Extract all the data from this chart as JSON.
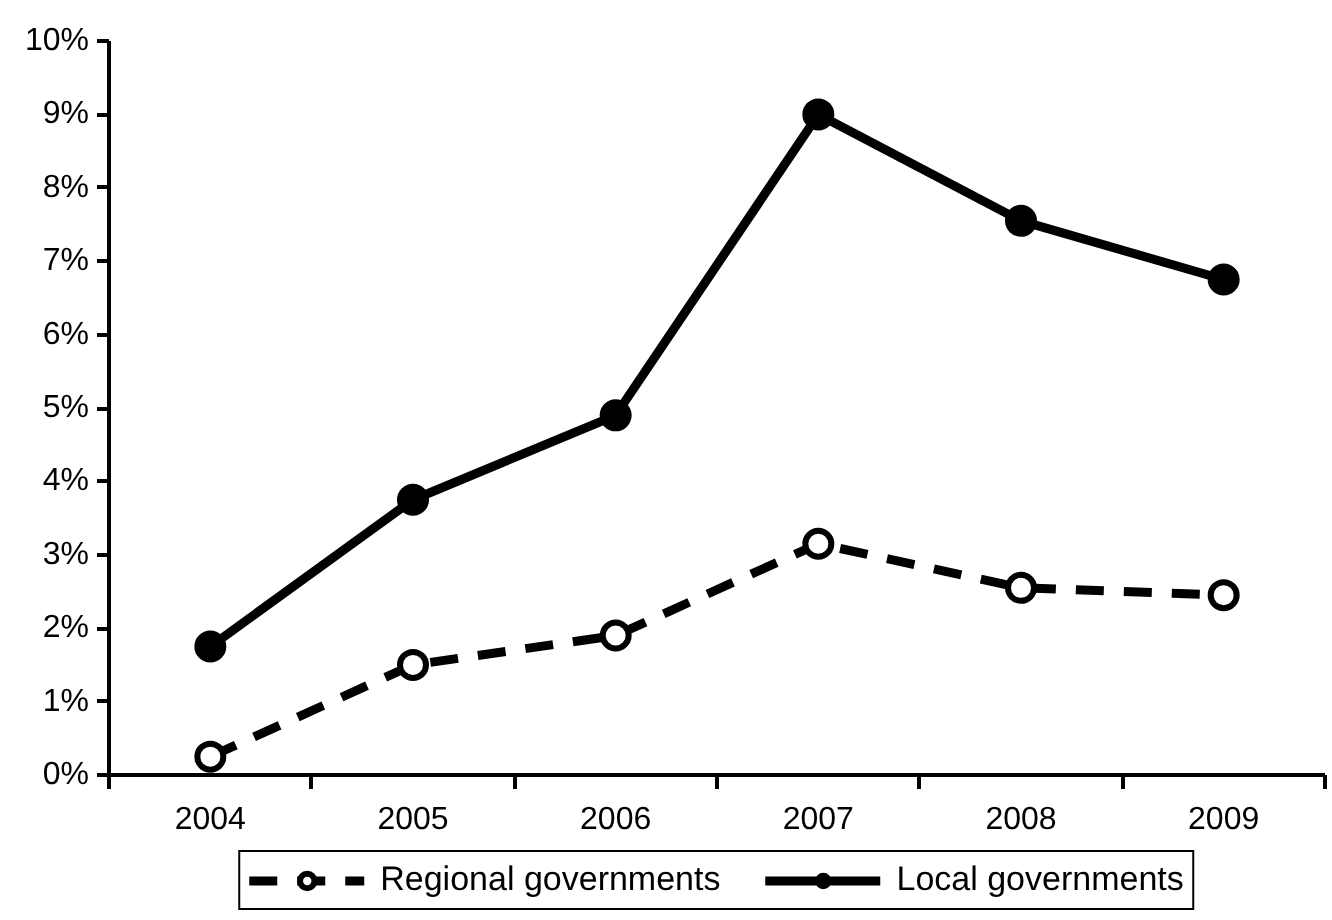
{
  "chart_data": {
    "type": "line",
    "categories": [
      "2004",
      "2005",
      "2006",
      "2007",
      "2008",
      "2009"
    ],
    "series": [
      {
        "name": "Regional governments",
        "color": "#000000",
        "values": [
          0.25,
          1.5,
          1.9,
          3.15,
          2.55,
          2.45
        ],
        "line_style": "dashed",
        "marker": "circle"
      },
      {
        "name": "Local governments",
        "color": "#000000",
        "values": [
          1.75,
          3.75,
          4.9,
          9.0,
          7.55,
          6.75
        ],
        "line_style": "solid",
        "marker": "circle"
      }
    ],
    "ylim": [
      0,
      10
    ],
    "yticks": [
      {
        "value": 0,
        "label": "0%"
      },
      {
        "value": 1,
        "label": "1%"
      },
      {
        "value": 2,
        "label": "2%"
      },
      {
        "value": 3,
        "label": "3%"
      },
      {
        "value": 4,
        "label": "4%"
      },
      {
        "value": 5,
        "label": "5%"
      },
      {
        "value": 6,
        "label": "6%"
      },
      {
        "value": 7,
        "label": "7%"
      },
      {
        "value": 8,
        "label": "8%"
      },
      {
        "value": 9,
        "label": "9%"
      },
      {
        "value": 10,
        "label": "10%"
      }
    ],
    "grid": false,
    "legend": "bottom"
  }
}
